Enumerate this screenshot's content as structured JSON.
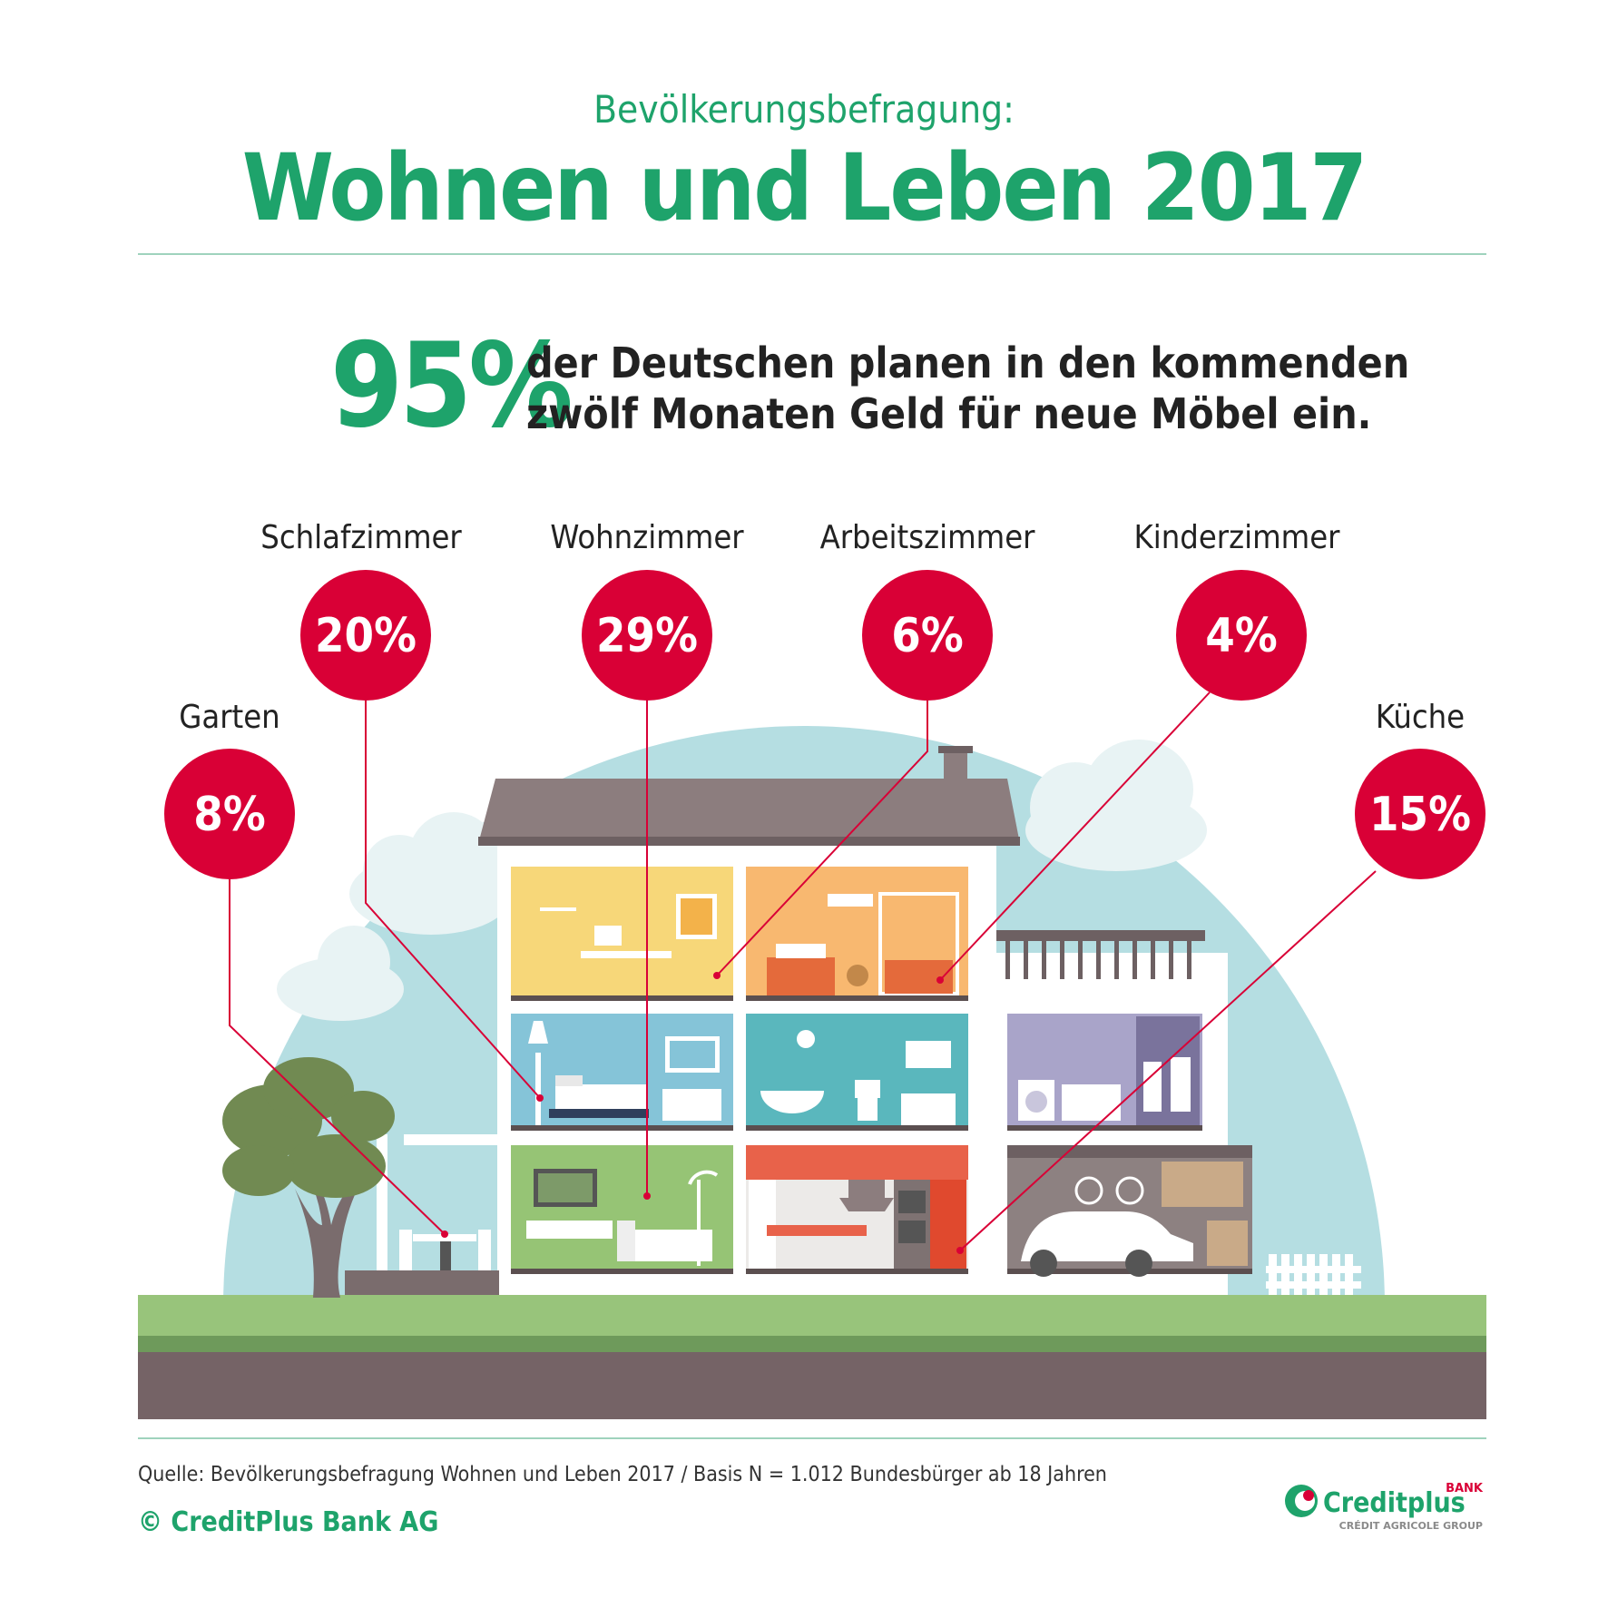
{
  "header": {
    "subtitle": "Bevölkerungsbefragung:",
    "title": "Wohnen und Leben 2017"
  },
  "headline": {
    "percent": "95%",
    "text_line1": "der Deutschen planen in den kommenden",
    "text_line2": "zwölf Monaten Geld für neue Möbel ein."
  },
  "rooms": [
    {
      "label": "Garten",
      "percent": "8%"
    },
    {
      "label": "Schlafzimmer",
      "percent": "20%"
    },
    {
      "label": "Wohnzimmer",
      "percent": "29%"
    },
    {
      "label": "Arbeitszimmer",
      "percent": "6%"
    },
    {
      "label": "Kinderzimmer",
      "percent": "4%"
    },
    {
      "label": "Küche",
      "percent": "15%"
    }
  ],
  "footer": {
    "source": "Quelle: Bevölkerungsbefragung Wohnen und Leben 2017 / Basis N = 1.012 Bundesbürger ab 18 Jahren",
    "copyright": "© CreditPlus Bank AG"
  },
  "logo": {
    "name": "Creditplus",
    "badge": "BANK",
    "group": "CRÉDIT AGRICOLE GROUP"
  },
  "colors": {
    "brand_green": "#1ea36b",
    "bubble_red": "#d90036",
    "sky": "#b5dee2",
    "grass": "#98c47b",
    "soil": "#756366",
    "roof": "#8c7d7e"
  }
}
